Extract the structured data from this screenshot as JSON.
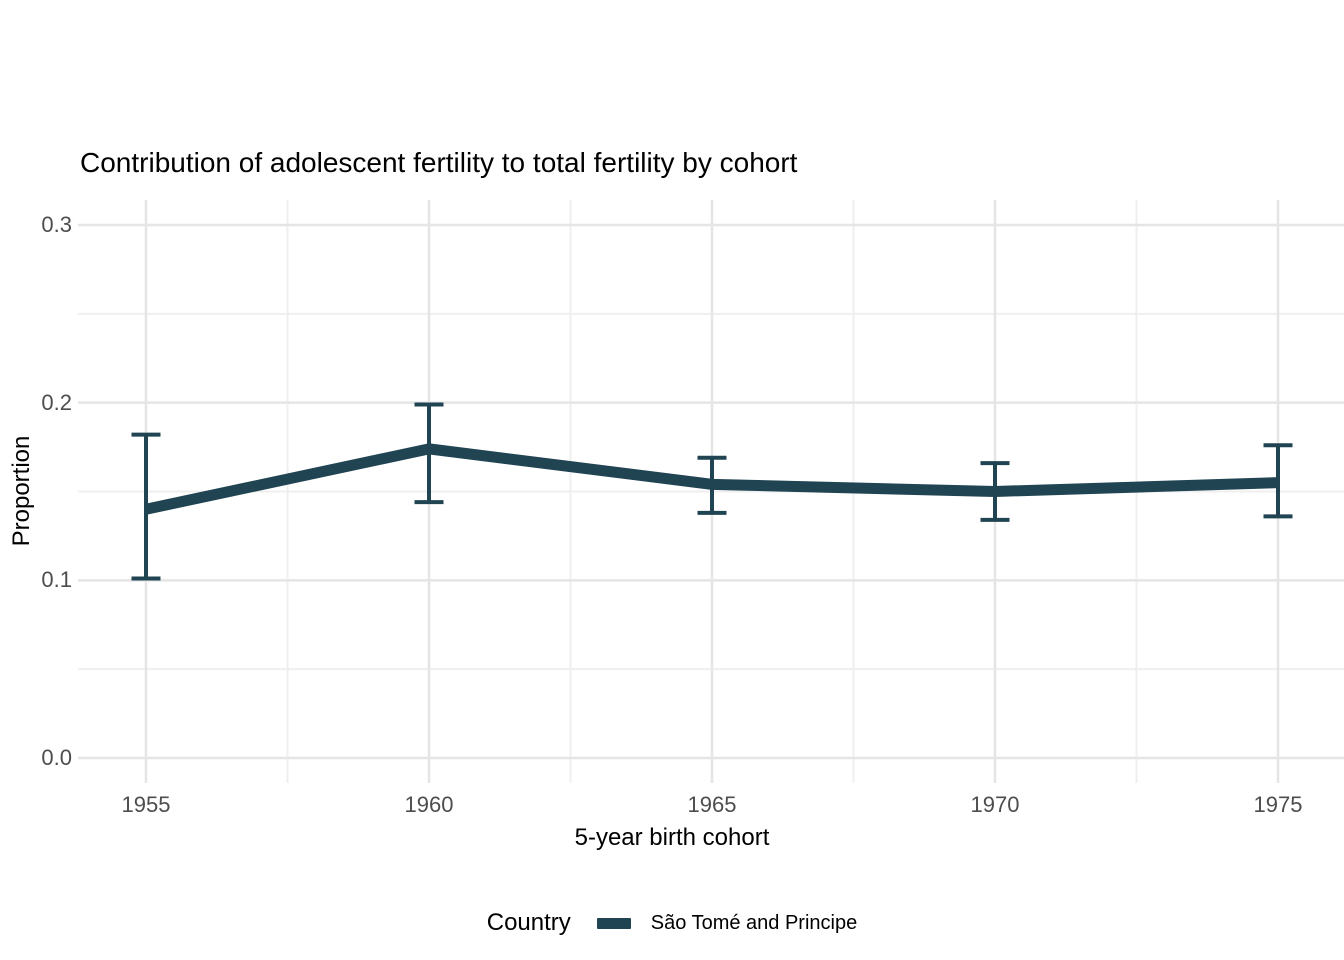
{
  "chart_data": {
    "type": "line",
    "title": "Contribution of adolescent fertility to total fertility by cohort",
    "xlabel": "5-year birth cohort",
    "ylabel": "Proportion",
    "legend": {
      "title": "Country",
      "position": "bottom"
    },
    "grid": "major and minor, light gray on white (theme_minimal style)",
    "colors": {
      "background": "#ffffff",
      "grid_major": "#e5e5e5",
      "grid_minor": "#efefef",
      "tick_text": "#4d4d4d",
      "title_text": "#000000"
    },
    "x": [
      1955,
      1960,
      1965,
      1970,
      1975
    ],
    "x_ticks": [
      {
        "value": 1955,
        "label": "1955"
      },
      {
        "value": 1960,
        "label": "1960"
      },
      {
        "value": 1965,
        "label": "1965"
      },
      {
        "value": 1970,
        "label": "1970"
      },
      {
        "value": 1975,
        "label": "1975"
      }
    ],
    "x_minor_ticks": [
      1957.5,
      1962.5,
      1967.5,
      1972.5
    ],
    "y_ticks": [
      {
        "value": 0.0,
        "label": "0.0"
      },
      {
        "value": 0.1,
        "label": "0.1"
      },
      {
        "value": 0.2,
        "label": "0.2"
      },
      {
        "value": 0.3,
        "label": "0.3"
      }
    ],
    "y_minor_ticks": [
      0.05,
      0.15,
      0.25
    ],
    "xlim": [
      1952.6,
      1977.3
    ],
    "ylim": [
      0,
      0.314
    ],
    "series": [
      {
        "name": "São Tomé and Principe",
        "color": "#204452",
        "values": [
          0.14,
          0.174,
          0.154,
          0.15,
          0.155
        ],
        "ci_lower": [
          0.101,
          0.144,
          0.138,
          0.134,
          0.136
        ],
        "ci_upper": [
          0.182,
          0.199,
          0.169,
          0.166,
          0.176
        ],
        "error_bars": true
      }
    ]
  }
}
